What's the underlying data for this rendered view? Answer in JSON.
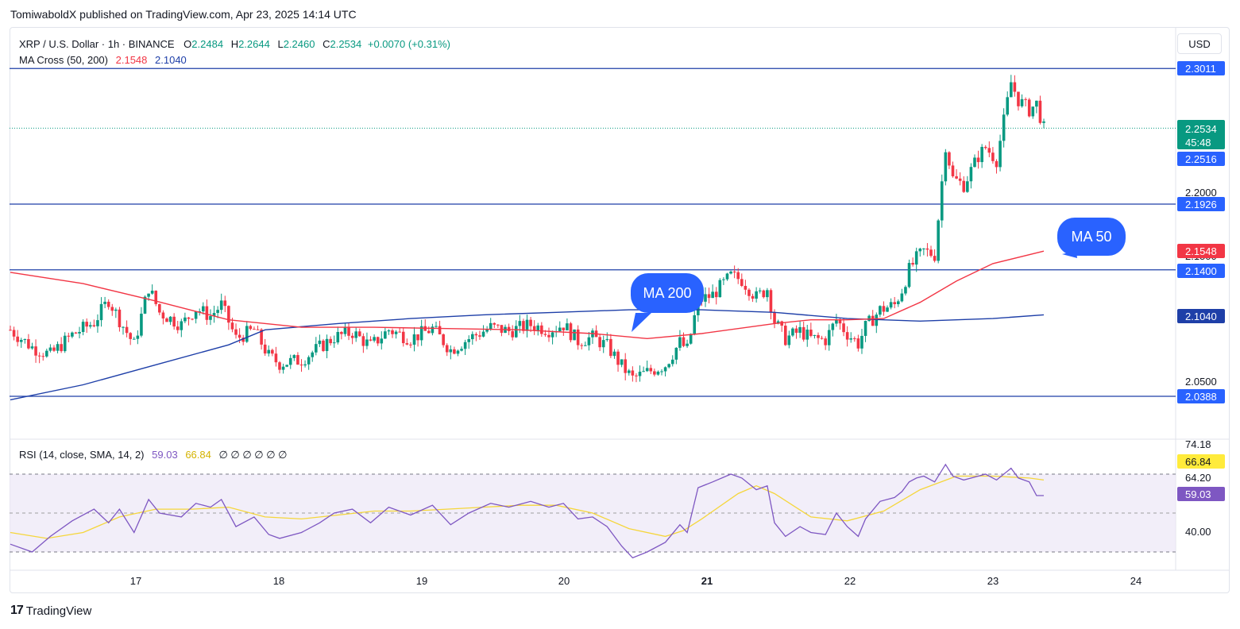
{
  "header": {
    "published": "TomiwaboldX published on TradingView.com, Apr 23, 2025 14:14 UTC"
  },
  "legend": {
    "symbol": "XRP / U.S. Dollar · 1h · BINANCE",
    "o_label": "O",
    "o": "2.2484",
    "h_label": "H",
    "h": "2.2644",
    "l_label": "L",
    "l": "2.2460",
    "c_label": "C",
    "c": "2.2534",
    "change": "+0.0070 (+0.31%)",
    "ma_label": "MA Cross (50, 200)",
    "ma50": "2.1548",
    "ma200": "2.1040"
  },
  "rsi_legend": {
    "label": "RSI (14, close, SMA, 14, 2)",
    "rsi": "59.03",
    "sma": "66.84",
    "extras": "∅ ∅ ∅ ∅ ∅ ∅"
  },
  "currency_button": "USD",
  "footer": {
    "brand": "TradingView"
  },
  "colors": {
    "up": "#089981",
    "down": "#f23645",
    "ma50": "#f23645",
    "ma200": "#1e3fa8",
    "hline": "#1e3fa8",
    "rsi": "#7e57c2",
    "rsi_sma": "#f5d63b",
    "callout": "#2962ff"
  },
  "chart_data": {
    "type": "candlestick",
    "x_ticks": [
      "17",
      "18",
      "19",
      "20",
      "21",
      "22",
      "23",
      "24"
    ],
    "y_ticks": [
      "2.2000",
      "2.1500",
      "2.0500"
    ],
    "ylim": [
      2.02,
      2.32
    ],
    "horizontal_lines": [
      "2.3011",
      "2.1926",
      "2.1400",
      "2.0388"
    ],
    "price_labels": [
      {
        "value": "2.3011",
        "kind": "line"
      },
      {
        "value": "2.2534",
        "kind": "last",
        "extra": "45:48"
      },
      {
        "value": "2.2516",
        "kind": "line"
      },
      {
        "value": "2.1926",
        "kind": "line"
      },
      {
        "value": "2.1548",
        "kind": "ma50"
      },
      {
        "value": "2.1400",
        "kind": "line"
      },
      {
        "value": "2.1040",
        "kind": "ma200"
      },
      {
        "value": "2.0388",
        "kind": "line"
      }
    ],
    "annotations": [
      {
        "text": "MA 200",
        "at": 2.11
      },
      {
        "text": "MA 50",
        "at": 2.155
      }
    ],
    "close_path": [
      [
        0,
        2.092
      ],
      [
        6,
        2.078
      ],
      [
        11,
        2.072
      ],
      [
        17,
        2.088
      ],
      [
        23,
        2.098
      ],
      [
        27,
        2.116
      ],
      [
        30,
        2.1
      ],
      [
        34,
        2.08
      ],
      [
        38,
        2.126
      ],
      [
        41,
        2.106
      ],
      [
        47,
        2.096
      ],
      [
        51,
        2.109
      ],
      [
        55,
        2.103
      ],
      [
        58,
        2.112
      ],
      [
        62,
        2.085
      ],
      [
        67,
        2.092
      ],
      [
        71,
        2.071
      ],
      [
        74,
        2.065
      ],
      [
        80,
        2.068
      ],
      [
        85,
        2.078
      ],
      [
        89,
        2.086
      ],
      [
        94,
        2.09
      ],
      [
        99,
        2.079
      ],
      [
        104,
        2.092
      ],
      [
        110,
        2.085
      ],
      [
        116,
        2.093
      ],
      [
        121,
        2.076
      ],
      [
        126,
        2.085
      ],
      [
        132,
        2.094
      ],
      [
        137,
        2.091
      ],
      [
        143,
        2.096
      ],
      [
        148,
        2.092
      ],
      [
        152,
        2.096
      ],
      [
        156,
        2.083
      ],
      [
        160,
        2.086
      ],
      [
        164,
        2.079
      ],
      [
        168,
        2.063
      ],
      [
        171,
        2.053
      ],
      [
        175,
        2.058
      ],
      [
        180,
        2.064
      ],
      [
        184,
        2.082
      ],
      [
        186,
        2.076
      ],
      [
        189,
        2.115
      ],
      [
        193,
        2.12
      ],
      [
        198,
        2.135
      ],
      [
        201,
        2.132
      ],
      [
        205,
        2.118
      ],
      [
        208,
        2.125
      ],
      [
        210,
        2.099
      ],
      [
        213,
        2.085
      ],
      [
        217,
        2.091
      ],
      [
        220,
        2.085
      ],
      [
        224,
        2.084
      ],
      [
        227,
        2.1
      ],
      [
        230,
        2.089
      ],
      [
        233,
        2.081
      ],
      [
        235,
        2.094
      ],
      [
        239,
        2.108
      ],
      [
        243,
        2.112
      ],
      [
        245,
        2.124
      ],
      [
        247,
        2.14
      ],
      [
        249,
        2.149
      ],
      [
        251,
        2.155
      ],
      [
        254,
        2.152
      ],
      [
        257,
        2.24
      ],
      [
        259,
        2.213
      ],
      [
        262,
        2.208
      ],
      [
        266,
        2.231
      ],
      [
        268,
        2.238
      ],
      [
        271,
        2.228
      ],
      [
        275,
        2.29
      ],
      [
        277,
        2.276
      ],
      [
        280,
        2.268
      ],
      [
        282,
        2.273
      ],
      [
        284,
        2.253
      ]
    ],
    "ma50": [
      [
        0,
        2.138
      ],
      [
        20,
        2.129
      ],
      [
        40,
        2.115
      ],
      [
        60,
        2.1
      ],
      [
        80,
        2.094
      ],
      [
        100,
        2.094
      ],
      [
        120,
        2.093
      ],
      [
        140,
        2.092
      ],
      [
        160,
        2.089
      ],
      [
        175,
        2.085
      ],
      [
        190,
        2.089
      ],
      [
        210,
        2.097
      ],
      [
        220,
        2.1
      ],
      [
        230,
        2.1
      ],
      [
        240,
        2.101
      ],
      [
        250,
        2.114
      ],
      [
        260,
        2.131
      ],
      [
        270,
        2.145
      ],
      [
        284,
        2.155
      ]
    ],
    "ma200": [
      [
        0,
        2.036
      ],
      [
        20,
        2.048
      ],
      [
        40,
        2.064
      ],
      [
        60,
        2.08
      ],
      [
        70,
        2.092
      ],
      [
        90,
        2.097
      ],
      [
        110,
        2.101
      ],
      [
        130,
        2.104
      ],
      [
        150,
        2.106
      ],
      [
        170,
        2.108
      ],
      [
        190,
        2.108
      ],
      [
        210,
        2.106
      ],
      [
        230,
        2.101
      ],
      [
        250,
        2.099
      ],
      [
        270,
        2.101
      ],
      [
        284,
        2.104
      ]
    ],
    "rsi": {
      "y_ticks": [
        "74.18",
        "64.20",
        "40.00"
      ],
      "ylim": [
        25,
        80
      ],
      "levels": [
        70,
        50,
        30
      ],
      "rsi_label": "59.03",
      "sma_label": "66.84",
      "rsi_path": [
        [
          0,
          34
        ],
        [
          6,
          30
        ],
        [
          11,
          38
        ],
        [
          17,
          46
        ],
        [
          23,
          52
        ],
        [
          27,
          45
        ],
        [
          30,
          52
        ],
        [
          34,
          40
        ],
        [
          38,
          57
        ],
        [
          41,
          50
        ],
        [
          47,
          48
        ],
        [
          51,
          55
        ],
        [
          55,
          53
        ],
        [
          58,
          57
        ],
        [
          62,
          43
        ],
        [
          67,
          48
        ],
        [
          71,
          39
        ],
        [
          74,
          37
        ],
        [
          80,
          40
        ],
        [
          85,
          45
        ],
        [
          89,
          50
        ],
        [
          94,
          52
        ],
        [
          99,
          45
        ],
        [
          104,
          53
        ],
        [
          110,
          49
        ],
        [
          116,
          54
        ],
        [
          121,
          44
        ],
        [
          126,
          50
        ],
        [
          132,
          55
        ],
        [
          137,
          53
        ],
        [
          143,
          56
        ],
        [
          148,
          53
        ],
        [
          152,
          55
        ],
        [
          156,
          47
        ],
        [
          160,
          48
        ],
        [
          164,
          43
        ],
        [
          168,
          33
        ],
        [
          171,
          27
        ],
        [
          175,
          30
        ],
        [
          180,
          35
        ],
        [
          184,
          44
        ],
        [
          186,
          40
        ],
        [
          189,
          63
        ],
        [
          193,
          66
        ],
        [
          198,
          70
        ],
        [
          201,
          68
        ],
        [
          205,
          62
        ],
        [
          208,
          64
        ],
        [
          210,
          45
        ],
        [
          213,
          38
        ],
        [
          217,
          43
        ],
        [
          220,
          40
        ],
        [
          224,
          39
        ],
        [
          227,
          50
        ],
        [
          230,
          43
        ],
        [
          233,
          38
        ],
        [
          235,
          47
        ],
        [
          239,
          56
        ],
        [
          243,
          58
        ],
        [
          245,
          61
        ],
        [
          247,
          66
        ],
        [
          249,
          68
        ],
        [
          251,
          69
        ],
        [
          254,
          66
        ],
        [
          257,
          75
        ],
        [
          259,
          69
        ],
        [
          262,
          67
        ],
        [
          266,
          69
        ],
        [
          268,
          70
        ],
        [
          271,
          67
        ],
        [
          275,
          73
        ],
        [
          277,
          68
        ],
        [
          280,
          66
        ],
        [
          282,
          59
        ],
        [
          284,
          59
        ]
      ],
      "sma_path": [
        [
          0,
          40
        ],
        [
          10,
          37
        ],
        [
          20,
          40
        ],
        [
          30,
          48
        ],
        [
          40,
          52
        ],
        [
          50,
          52
        ],
        [
          60,
          53
        ],
        [
          70,
          48
        ],
        [
          80,
          47
        ],
        [
          90,
          49
        ],
        [
          100,
          51
        ],
        [
          110,
          51
        ],
        [
          120,
          52
        ],
        [
          130,
          53
        ],
        [
          140,
          54
        ],
        [
          150,
          54
        ],
        [
          160,
          50
        ],
        [
          170,
          42
        ],
        [
          180,
          38
        ],
        [
          185,
          41
        ],
        [
          190,
          47
        ],
        [
          200,
          60
        ],
        [
          205,
          64
        ],
        [
          210,
          60
        ],
        [
          220,
          48
        ],
        [
          230,
          46
        ],
        [
          240,
          51
        ],
        [
          250,
          62
        ],
        [
          260,
          69
        ],
        [
          270,
          69
        ],
        [
          280,
          68
        ],
        [
          284,
          67
        ]
      ]
    }
  }
}
